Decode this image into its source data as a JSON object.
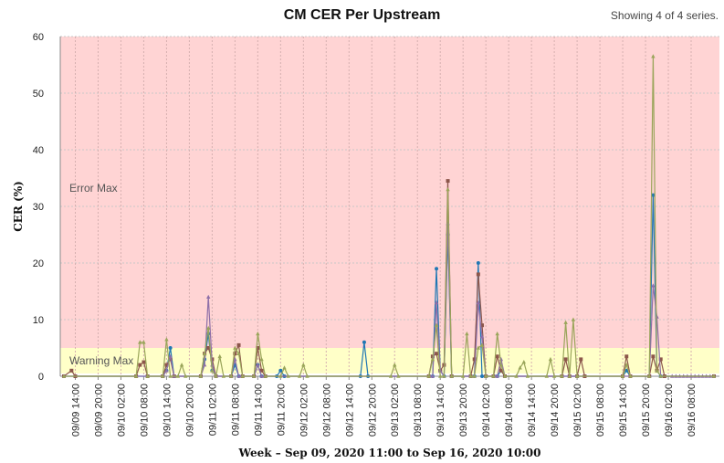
{
  "header": {
    "title": "CM CER Per Upstream",
    "series_count": "Showing 4 of 4 series."
  },
  "chart_data": {
    "type": "line",
    "title": "CM CER Per Upstream",
    "xlabel": "Week – Sep 09, 2020 11:00 to Sep 16, 2020 10:00",
    "ylabel": "CER (%)",
    "ylim": [
      0,
      60
    ],
    "yticks": [
      0,
      10,
      20,
      30,
      40,
      50,
      60
    ],
    "x_start_hour": 0,
    "x_end_hour": 171,
    "xticks": [
      {
        "hour": 3,
        "label": "09/09 14:00"
      },
      {
        "hour": 9,
        "label": "09/09 20:00"
      },
      {
        "hour": 15,
        "label": "09/10 02:00"
      },
      {
        "hour": 21,
        "label": "09/10 08:00"
      },
      {
        "hour": 27,
        "label": "09/10 14:00"
      },
      {
        "hour": 33,
        "label": "09/10 20:00"
      },
      {
        "hour": 39,
        "label": "09/11 02:00"
      },
      {
        "hour": 45,
        "label": "09/11 08:00"
      },
      {
        "hour": 51,
        "label": "09/11 14:00"
      },
      {
        "hour": 57,
        "label": "09/11 20:00"
      },
      {
        "hour": 63,
        "label": "09/12 02:00"
      },
      {
        "hour": 69,
        "label": "09/12 08:00"
      },
      {
        "hour": 75,
        "label": "09/12 14:00"
      },
      {
        "hour": 81,
        "label": "09/12 20:00"
      },
      {
        "hour": 87,
        "label": "09/13 02:00"
      },
      {
        "hour": 93,
        "label": "09/13 08:00"
      },
      {
        "hour": 99,
        "label": "09/13 14:00"
      },
      {
        "hour": 105,
        "label": "09/13 20:00"
      },
      {
        "hour": 111,
        "label": "09/14 02:00"
      },
      {
        "hour": 117,
        "label": "09/14 08:00"
      },
      {
        "hour": 123,
        "label": "09/14 14:00"
      },
      {
        "hour": 129,
        "label": "09/14 20:00"
      },
      {
        "hour": 135,
        "label": "09/15 02:00"
      },
      {
        "hour": 141,
        "label": "09/15 08:00"
      },
      {
        "hour": 147,
        "label": "09/15 14:00"
      },
      {
        "hour": 153,
        "label": "09/15 20:00"
      },
      {
        "hour": 159,
        "label": "09/16 02:00"
      },
      {
        "hour": 165,
        "label": "09/16 08:00"
      }
    ],
    "bands": [
      {
        "label": "Error Max",
        "from": 5,
        "to": 60,
        "color": "#ffd4d4"
      },
      {
        "label": "Warning Max",
        "from": 0.5,
        "to": 5,
        "color": "#ffffc8"
      }
    ],
    "grid": true,
    "series": [
      {
        "color": "#1f77b4",
        "marker": "circle",
        "points": [
          [
            0,
            0
          ],
          [
            26,
            0
          ],
          [
            27,
            1
          ],
          [
            28,
            5
          ],
          [
            29,
            0
          ],
          [
            36,
            0
          ],
          [
            37,
            3
          ],
          [
            38,
            7.5
          ],
          [
            39,
            1
          ],
          [
            40,
            0
          ],
          [
            44,
            0
          ],
          [
            45,
            2
          ],
          [
            46,
            0
          ],
          [
            50,
            0
          ],
          [
            51,
            2
          ],
          [
            52,
            0
          ],
          [
            56,
            0
          ],
          [
            57,
            1
          ],
          [
            58,
            0
          ],
          [
            78,
            0
          ],
          [
            79,
            6
          ],
          [
            80,
            0
          ],
          [
            97,
            0
          ],
          [
            98,
            19
          ],
          [
            99,
            1
          ],
          [
            100,
            0
          ],
          [
            101,
            25
          ],
          [
            102,
            0
          ],
          [
            108,
            0
          ],
          [
            109,
            20
          ],
          [
            110,
            0
          ],
          [
            114,
            0
          ],
          [
            115,
            1
          ],
          [
            116,
            0
          ],
          [
            147,
            0
          ],
          [
            148,
            1
          ],
          [
            149,
            0
          ],
          [
            154,
            0
          ],
          [
            155,
            32
          ],
          [
            156,
            1
          ],
          [
            157,
            0
          ],
          [
            171,
            0
          ]
        ]
      },
      {
        "color": "#8c564b",
        "marker": "square",
        "points": [
          [
            0,
            0
          ],
          [
            2,
            1
          ],
          [
            3,
            0
          ],
          [
            19,
            0
          ],
          [
            20,
            2
          ],
          [
            21,
            2.5
          ],
          [
            22,
            0
          ],
          [
            26,
            0
          ],
          [
            27,
            2
          ],
          [
            28,
            3
          ],
          [
            29,
            0
          ],
          [
            36,
            0
          ],
          [
            37,
            4
          ],
          [
            38,
            5
          ],
          [
            39,
            3
          ],
          [
            40,
            0
          ],
          [
            44,
            0
          ],
          [
            45,
            4
          ],
          [
            46,
            5.5
          ],
          [
            47,
            0
          ],
          [
            50,
            0
          ],
          [
            51,
            5
          ],
          [
            52,
            1
          ],
          [
            53,
            0
          ],
          [
            96,
            0
          ],
          [
            97,
            3.5
          ],
          [
            98,
            4
          ],
          [
            99,
            1
          ],
          [
            100,
            2
          ],
          [
            101,
            34.5
          ],
          [
            102,
            0
          ],
          [
            107,
            0
          ],
          [
            108,
            3
          ],
          [
            109,
            18
          ],
          [
            110,
            9
          ],
          [
            111,
            0
          ],
          [
            113,
            0
          ],
          [
            114,
            3.5
          ],
          [
            115,
            1
          ],
          [
            116,
            0
          ],
          [
            131,
            0
          ],
          [
            132,
            3
          ],
          [
            133,
            0
          ],
          [
            135,
            0
          ],
          [
            136,
            3
          ],
          [
            137,
            0
          ],
          [
            147,
            0
          ],
          [
            148,
            3.5
          ],
          [
            149,
            0
          ],
          [
            154,
            0
          ],
          [
            155,
            3.5
          ],
          [
            156,
            1
          ],
          [
            157,
            3
          ],
          [
            158,
            0
          ],
          [
            171,
            0
          ]
        ]
      },
      {
        "color": "#8e6fa8",
        "marker": "triangle",
        "points": [
          [
            0,
            0
          ],
          [
            26,
            0
          ],
          [
            27,
            1
          ],
          [
            28,
            3.5
          ],
          [
            29,
            0
          ],
          [
            36,
            0
          ],
          [
            37,
            2
          ],
          [
            38,
            14
          ],
          [
            39,
            2
          ],
          [
            40,
            0
          ],
          [
            44,
            0
          ],
          [
            45,
            3
          ],
          [
            46,
            0
          ],
          [
            50,
            0
          ],
          [
            51,
            2
          ],
          [
            52,
            0
          ],
          [
            97,
            0
          ],
          [
            98,
            13
          ],
          [
            99,
            1
          ],
          [
            100,
            0
          ],
          [
            101,
            27
          ],
          [
            102,
            0
          ],
          [
            108,
            0
          ],
          [
            109,
            13
          ],
          [
            110,
            7
          ],
          [
            111,
            0
          ],
          [
            114,
            0
          ],
          [
            115,
            3
          ],
          [
            116,
            0
          ],
          [
            154,
            0
          ],
          [
            155,
            16
          ],
          [
            156,
            10.5
          ],
          [
            157,
            0
          ],
          [
            160,
            0
          ],
          [
            161,
            0
          ],
          [
            162,
            0
          ],
          [
            163,
            0
          ],
          [
            164,
            0
          ],
          [
            165,
            0
          ],
          [
            166,
            0
          ],
          [
            167,
            0
          ],
          [
            168,
            0
          ],
          [
            169,
            0
          ],
          [
            170,
            0
          ],
          [
            171,
            0
          ]
        ]
      },
      {
        "color": "#9aa55a",
        "marker": "triangle-up",
        "points": [
          [
            0,
            0
          ],
          [
            19,
            0
          ],
          [
            20,
            6
          ],
          [
            21,
            6
          ],
          [
            22,
            0
          ],
          [
            26,
            0
          ],
          [
            27,
            6.5
          ],
          [
            28,
            0
          ],
          [
            30,
            0
          ],
          [
            31,
            2
          ],
          [
            32,
            0
          ],
          [
            36,
            0
          ],
          [
            37,
            4
          ],
          [
            38,
            8.5
          ],
          [
            39,
            1
          ],
          [
            40,
            0
          ],
          [
            41,
            3.5
          ],
          [
            42,
            0
          ],
          [
            44,
            0
          ],
          [
            45,
            5
          ],
          [
            46,
            4
          ],
          [
            47,
            0
          ],
          [
            50,
            0
          ],
          [
            51,
            7.5
          ],
          [
            52,
            3
          ],
          [
            53,
            0
          ],
          [
            57,
            0
          ],
          [
            58,
            1.5
          ],
          [
            59,
            0
          ],
          [
            62,
            0
          ],
          [
            63,
            2
          ],
          [
            64,
            0
          ],
          [
            86,
            0
          ],
          [
            87,
            2
          ],
          [
            88,
            0
          ],
          [
            96,
            0
          ],
          [
            97,
            3
          ],
          [
            98,
            9
          ],
          [
            99,
            0
          ],
          [
            100,
            0
          ],
          [
            101,
            33
          ],
          [
            102,
            0
          ],
          [
            105,
            0
          ],
          [
            106,
            7.5
          ],
          [
            107,
            0
          ],
          [
            108,
            0
          ],
          [
            109,
            5
          ],
          [
            110,
            5.5
          ],
          [
            111,
            0
          ],
          [
            113,
            0
          ],
          [
            114,
            7.5
          ],
          [
            115,
            2
          ],
          [
            116,
            0
          ],
          [
            119,
            0
          ],
          [
            120,
            1.5
          ],
          [
            121,
            2.5
          ],
          [
            122,
            0
          ],
          [
            127,
            0
          ],
          [
            128,
            3
          ],
          [
            129,
            0
          ],
          [
            131,
            0
          ],
          [
            132,
            9.5
          ],
          [
            133,
            0
          ],
          [
            134,
            10
          ],
          [
            135,
            0
          ],
          [
            147,
            0
          ],
          [
            148,
            2
          ],
          [
            149,
            0
          ],
          [
            154,
            0
          ],
          [
            155,
            56.5
          ],
          [
            156,
            1
          ],
          [
            157,
            0
          ],
          [
            171,
            0
          ]
        ]
      }
    ]
  }
}
